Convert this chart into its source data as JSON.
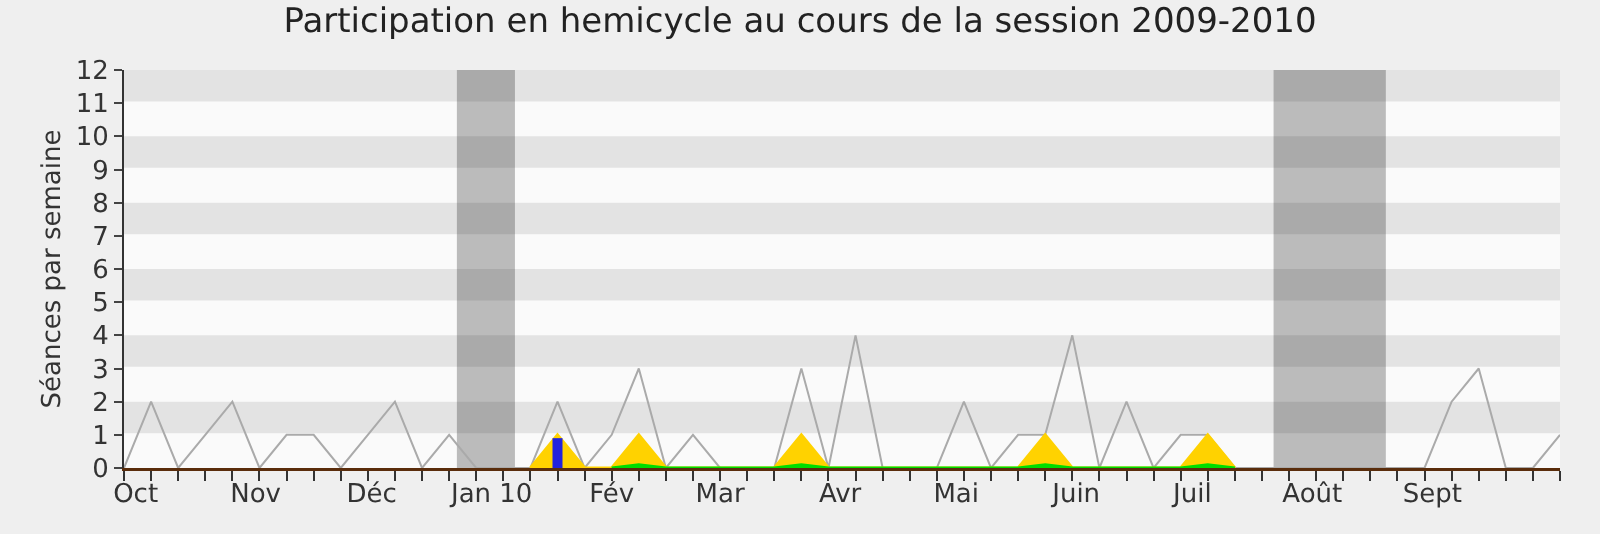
{
  "chart_data": {
    "type": "line",
    "title": "Participation en hemicycle au cours de la session 2009-2010",
    "ylabel": "Séances par semaine",
    "x": [
      "2009-09-28",
      "2009-10-05",
      "2009-10-12",
      "2009-10-19",
      "2009-10-26",
      "2009-11-02",
      "2009-11-09",
      "2009-11-16",
      "2009-11-23",
      "2009-11-30",
      "2009-12-07",
      "2009-12-14",
      "2009-12-21",
      "2009-12-28",
      "2010-01-04",
      "2010-01-11",
      "2010-01-18",
      "2010-01-25",
      "2010-02-01",
      "2010-02-08",
      "2010-02-15",
      "2010-02-22",
      "2010-03-01",
      "2010-03-08",
      "2010-03-15",
      "2010-03-22",
      "2010-03-29",
      "2010-04-05",
      "2010-04-12",
      "2010-04-19",
      "2010-04-26",
      "2010-05-03",
      "2010-05-10",
      "2010-05-17",
      "2010-05-24",
      "2010-05-31",
      "2010-06-07",
      "2010-06-14",
      "2010-06-21",
      "2010-06-28",
      "2010-07-05",
      "2010-07-12",
      "2010-07-19",
      "2010-07-26",
      "2010-08-02",
      "2010-08-09",
      "2010-08-16",
      "2010-08-23",
      "2010-08-30",
      "2010-09-06",
      "2010-09-13",
      "2010-09-20",
      "2010-09-27",
      "2010-10-04"
    ],
    "series": [
      {
        "color": "#aaaaaa",
        "values": [
          0,
          2,
          0,
          1,
          2,
          0,
          1,
          1,
          0,
          1,
          2,
          0,
          1,
          0,
          0,
          0,
          2,
          0,
          1,
          3,
          0,
          1,
          0,
          0,
          0,
          3,
          0,
          4,
          0,
          0,
          0,
          2,
          0,
          1,
          1,
          4,
          0,
          2,
          0,
          1,
          1,
          0,
          0,
          0,
          0,
          0,
          0,
          0,
          0,
          2,
          3,
          0,
          0,
          1
        ]
      },
      {
        "type": "area",
        "color": "#ffd200",
        "x": [
          "2010-01-11",
          "2010-01-18",
          "2010-01-25",
          "2010-02-01",
          "2010-02-08",
          "2010-02-15",
          "2010-03-15",
          "2010-03-22",
          "2010-03-29",
          "2010-05-17",
          "2010-05-24",
          "2010-05-31",
          "2010-06-28",
          "2010-07-05",
          "2010-07-12"
        ],
        "values": [
          0,
          1,
          0,
          0,
          1,
          0,
          0,
          1,
          0,
          0,
          1,
          0,
          0,
          1,
          0
        ]
      },
      {
        "type": "area",
        "color": "#00dd00",
        "x": [
          "2010-02-01",
          "2010-02-08",
          "2010-02-15",
          "2010-03-15",
          "2010-03-22",
          "2010-03-29",
          "2010-05-17",
          "2010-05-24",
          "2010-05-31",
          "2010-06-28",
          "2010-07-05",
          "2010-07-12"
        ],
        "values": [
          0,
          0.1,
          0,
          0,
          0.1,
          0,
          0,
          0.1,
          0,
          0,
          0.1,
          0
        ]
      },
      {
        "type": "bar",
        "color": "#2222dd",
        "x": [
          "2010-01-18"
        ],
        "values": [
          0.9
        ]
      }
    ],
    "xlim": [
      "2009-09-28",
      "2010-10-04"
    ],
    "xticks": [
      {
        "value": "2009-10-01",
        "label": "Oct"
      },
      {
        "value": "2009-11-01",
        "label": "Nov"
      },
      {
        "value": "2009-12-01",
        "label": "Déc"
      },
      {
        "value": "2010-01-01",
        "label": "Jan 10"
      },
      {
        "value": "2010-02-01",
        "label": "Fév"
      },
      {
        "value": "2010-03-01",
        "label": "Mar"
      },
      {
        "value": "2010-04-01",
        "label": "Avr"
      },
      {
        "value": "2010-05-01",
        "label": "Mai"
      },
      {
        "value": "2010-06-01",
        "label": "Juin"
      },
      {
        "value": "2010-07-01",
        "label": "Juil"
      },
      {
        "value": "2010-08-01",
        "label": "Août"
      },
      {
        "value": "2010-09-01",
        "label": "Sept"
      }
    ],
    "ylim": [
      0,
      12
    ],
    "yticks": [
      0,
      1,
      2,
      3,
      4,
      5,
      6,
      7,
      8,
      9,
      10,
      11,
      12
    ],
    "bands": [
      {
        "axis": "x",
        "from": "2009-12-23",
        "to": "2010-01-07",
        "color": "#bbbbbb"
      },
      {
        "axis": "x",
        "from": "2010-07-22",
        "to": "2010-08-20",
        "color": "#bbbbbb"
      }
    ],
    "marker": "none"
  }
}
